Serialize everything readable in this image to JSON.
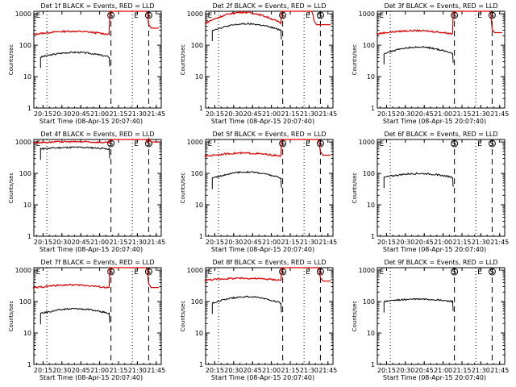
{
  "colors": {
    "events": "#000000",
    "lld": "#e00000",
    "axes": "#000000"
  },
  "panels_label_suffix": " BLACK = Events, RED = LLD",
  "chart_data": [
    {
      "type": "line",
      "title": "Det 1f BLACK = Events, RED = LLD",
      "ylabel": "Counts/sec",
      "xlabel": "Start Time (08-Apr-15 20:07:40)",
      "yscale": "log",
      "ylim": [
        1,
        1200
      ],
      "x_ticks": [
        "20:15",
        "20:30",
        "20:45",
        "21:00",
        "21:15",
        "21:30",
        "21:45"
      ],
      "y_ticks": [
        "1",
        "10",
        "100",
        "1000"
      ],
      "markers": [
        "E",
        "S",
        "E",
        "S"
      ],
      "series": [
        {
          "name": "Events",
          "start": "20:13",
          "end": "21:08",
          "level": 42,
          "wave": 0.15
        },
        {
          "name": "LLD",
          "start": "20:07",
          "end": "21:08",
          "level": 220,
          "wave": 0.1,
          "rise_after": "21:08",
          "peak": 1200,
          "tail_start": "21:38",
          "tail_level": 350
        }
      ]
    },
    {
      "type": "line",
      "title": "Det 2f BLACK = Events, RED = LLD",
      "ylabel": "Counts/sec",
      "xlabel": "Start Time (08-Apr-15 20:07:40)",
      "yscale": "log",
      "ylim": [
        1,
        1200
      ],
      "x_ticks": [
        "20:15",
        "20:30",
        "20:45",
        "21:00",
        "21:15",
        "21:30",
        "21:45"
      ],
      "y_ticks": [
        "1",
        "10",
        "100",
        "1000"
      ],
      "markers": [
        "E",
        "S",
        "E",
        "S"
      ],
      "series": [
        {
          "name": "Events",
          "start": "20:13",
          "end": "21:08",
          "level": 300,
          "wave": 0.2
        },
        {
          "name": "LLD",
          "start": "20:07",
          "end": "21:08",
          "level": 500,
          "wave": 0.35,
          "rise_after": "21:08",
          "peak": 1200,
          "tail_start": "21:33",
          "tail_level": 450
        }
      ]
    },
    {
      "type": "line",
      "title": "Det 3f BLACK = Events, RED = LLD",
      "ylabel": "Counts/sec",
      "xlabel": "Start Time (08-Apr-15 20:07:40)",
      "yscale": "log",
      "ylim": [
        1,
        1200
      ],
      "x_ticks": [
        "20:15",
        "20:30",
        "20:45",
        "21:00",
        "21:15",
        "21:30",
        "21:45"
      ],
      "y_ticks": [
        "1",
        "10",
        "100",
        "1000"
      ],
      "markers": [
        "E",
        "S",
        "E",
        "S"
      ],
      "series": [
        {
          "name": "Events",
          "start": "20:13",
          "end": "21:08",
          "level": 55,
          "wave": 0.2
        },
        {
          "name": "LLD",
          "start": "20:07",
          "end": "21:08",
          "level": 230,
          "wave": 0.1,
          "rise_after": "21:08",
          "peak": 1200,
          "tail_start": "21:38",
          "tail_level": 250
        }
      ]
    },
    {
      "type": "line",
      "title": "Det 4f BLACK = Events, RED = LLD",
      "ylabel": "Counts/sec",
      "xlabel": "Start Time (08-Apr-15 20:07:40)",
      "yscale": "log",
      "ylim": [
        1,
        1200
      ],
      "x_ticks": [
        "20:15",
        "20:30",
        "20:45",
        "21:00",
        "21:15",
        "21:30",
        "21:45"
      ],
      "y_ticks": [
        "1",
        "10",
        "100",
        "1000"
      ],
      "markers": [
        "E",
        "S",
        "E",
        "S"
      ],
      "series": [
        {
          "name": "Events",
          "start": "20:13",
          "end": "21:08",
          "level": 600,
          "wave": 0.05
        },
        {
          "name": "LLD",
          "start": "20:07",
          "end": "21:08",
          "level": 950,
          "wave": 0.03,
          "rise_after": "21:08",
          "peak": 1200,
          "tail_start": "21:38",
          "tail_level": 1000
        }
      ]
    },
    {
      "type": "line",
      "title": "Det 5f BLACK = Events, RED = LLD",
      "ylabel": "Counts/sec",
      "xlabel": "Start Time (08-Apr-15 20:07:40)",
      "yscale": "log",
      "ylim": [
        1,
        1200
      ],
      "x_ticks": [
        "20:15",
        "20:30",
        "20:45",
        "21:00",
        "21:15",
        "21:30",
        "21:45"
      ],
      "y_ticks": [
        "1",
        "10",
        "100",
        "1000"
      ],
      "markers": [
        "E",
        "S",
        "E",
        "S"
      ],
      "series": [
        {
          "name": "Events",
          "start": "20:13",
          "end": "21:08",
          "level": 70,
          "wave": 0.2
        },
        {
          "name": "LLD",
          "start": "20:07",
          "end": "21:08",
          "level": 350,
          "wave": 0.1,
          "rise_after": "21:08",
          "peak": 1200,
          "tail_start": "21:38",
          "tail_level": 380
        }
      ]
    },
    {
      "type": "line",
      "title": "Det 6f BLACK = Events, RED = LLD",
      "ylabel": "Counts/sec",
      "xlabel": "Start Time (08-Apr-15 20:07:40)",
      "yscale": "log",
      "ylim": [
        1,
        1200
      ],
      "x_ticks": [
        "20:15",
        "20:30",
        "20:45",
        "21:00",
        "21:15",
        "21:30",
        "21:45"
      ],
      "y_ticks": [
        "1",
        "10",
        "100",
        "1000"
      ],
      "markers": [
        "E",
        "S",
        "E",
        "S"
      ],
      "series": [
        {
          "name": "Events",
          "start": "20:13",
          "end": "21:08",
          "level": 75,
          "wave": 0.12
        }
      ]
    },
    {
      "type": "line",
      "title": "Det 7f BLACK = Events, RED = LLD",
      "ylabel": "Counts/sec",
      "xlabel": "Start Time (08-Apr-15 20:07:40)",
      "yscale": "log",
      "ylim": [
        1,
        1200
      ],
      "x_ticks": [
        "20:15",
        "20:30",
        "20:45",
        "21:00",
        "21:15",
        "21:30",
        "21:45"
      ],
      "y_ticks": [
        "1",
        "10",
        "100",
        "1000"
      ],
      "markers": [
        "E",
        "S",
        "E",
        "S"
      ],
      "series": [
        {
          "name": "Events",
          "start": "20:13",
          "end": "21:08",
          "level": 42,
          "wave": 0.15
        },
        {
          "name": "LLD",
          "start": "20:07",
          "end": "21:08",
          "level": 270,
          "wave": 0.1,
          "rise_after": "21:08",
          "peak": 1200,
          "tail_start": "21:38",
          "tail_level": 280
        }
      ]
    },
    {
      "type": "line",
      "title": "Det 8f BLACK = Events, RED = LLD",
      "ylabel": "Counts/sec",
      "xlabel": "Start Time (08-Apr-15 20:07:40)",
      "yscale": "log",
      "ylim": [
        1,
        1200
      ],
      "x_ticks": [
        "20:15",
        "20:30",
        "20:45",
        "21:00",
        "21:15",
        "21:30",
        "21:45"
      ],
      "y_ticks": [
        "1",
        "10",
        "100",
        "1000"
      ],
      "markers": [
        "E",
        "S",
        "E",
        "S"
      ],
      "series": [
        {
          "name": "Events",
          "start": "20:13",
          "end": "21:08",
          "level": 90,
          "wave": 0.2
        },
        {
          "name": "LLD",
          "start": "20:07",
          "end": "21:08",
          "level": 480,
          "wave": 0.06,
          "rise_after": "21:08",
          "peak": 1200,
          "tail_start": "21:38",
          "tail_level": 450
        }
      ]
    },
    {
      "type": "line",
      "title": "Det 9f BLACK = Events, RED = LLD",
      "ylabel": "Counts/sec",
      "xlabel": "Start Time (08-Apr-15 20:07:40)",
      "yscale": "log",
      "ylim": [
        1,
        1200
      ],
      "x_ticks": [
        "20:15",
        "20:30",
        "20:45",
        "21:00",
        "21:15",
        "21:30",
        "21:45"
      ],
      "y_ticks": [
        "1",
        "10",
        "100",
        "1000"
      ],
      "markers": [
        "E",
        "S",
        "E",
        "S"
      ],
      "series": [
        {
          "name": "Events",
          "start": "20:13",
          "end": "21:08",
          "level": 100,
          "wave": 0.08
        }
      ]
    }
  ]
}
